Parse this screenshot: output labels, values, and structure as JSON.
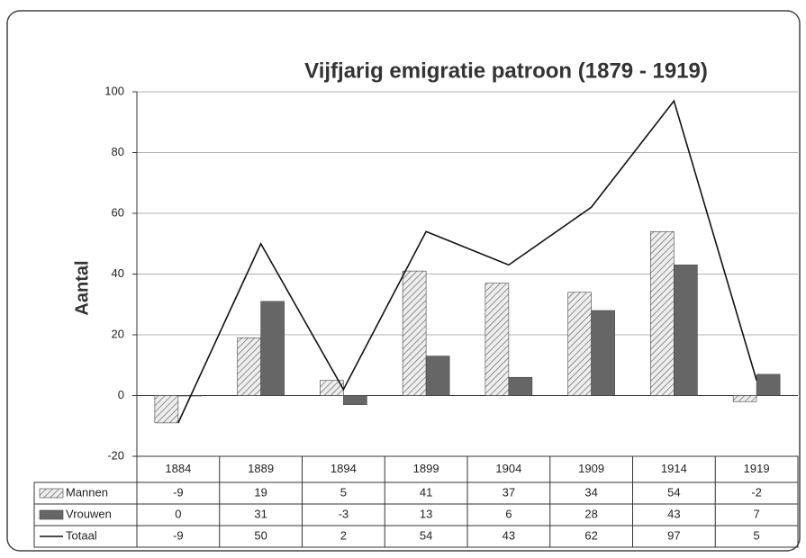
{
  "chart_data": {
    "type": "bar",
    "title": "Vijfjarig emigratie patroon (1879 - 1919)",
    "y_label": "Aantal",
    "categories": [
      "1884",
      "1889",
      "1894",
      "1899",
      "1904",
      "1909",
      "1914",
      "1919"
    ],
    "series": [
      {
        "name": "Mannen",
        "color": "#d9d9d9",
        "pattern": "hatch",
        "type": "bar",
        "values": [
          -9,
          19,
          5,
          41,
          37,
          34,
          54,
          -2
        ]
      },
      {
        "name": "Vrouwen",
        "color": "#666666",
        "type": "bar",
        "values": [
          0,
          31,
          -3,
          13,
          6,
          28,
          43,
          7
        ]
      },
      {
        "name": "Totaal",
        "color": "#111111",
        "type": "line",
        "values": [
          -9,
          50,
          2,
          54,
          43,
          62,
          97,
          5
        ]
      }
    ],
    "ylim": [
      -20,
      100
    ],
    "yticks": [
      -20,
      0,
      20,
      40,
      60,
      80,
      100
    ],
    "grid": true,
    "data_table": true
  }
}
